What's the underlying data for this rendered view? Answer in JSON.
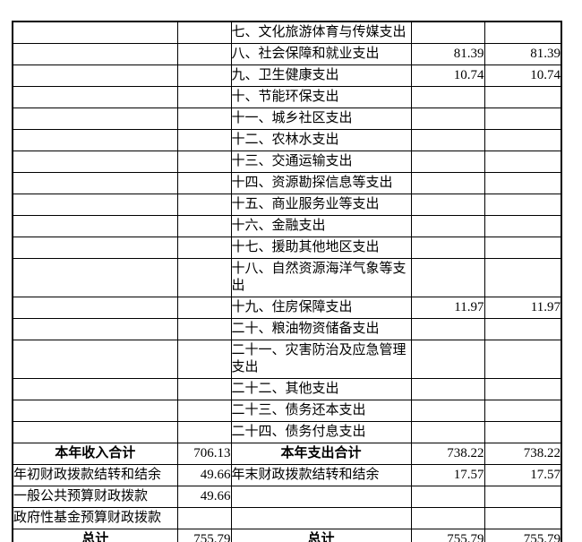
{
  "table": {
    "unit_note": "",
    "expense_rows": [
      {
        "item": "七、文化旅游体育与传媒支出",
        "value1": "",
        "value2": ""
      },
      {
        "item": "八、社会保障和就业支出",
        "value1": "81.39",
        "value2": "81.39"
      },
      {
        "item": "九、卫生健康支出",
        "value1": "10.74",
        "value2": "10.74"
      },
      {
        "item": "十、节能环保支出",
        "value1": "",
        "value2": ""
      },
      {
        "item": "十一、城乡社区支出",
        "value1": "",
        "value2": ""
      },
      {
        "item": "十二、农林水支出",
        "value1": "",
        "value2": ""
      },
      {
        "item": "十三、交通运输支出",
        "value1": "",
        "value2": ""
      },
      {
        "item": "十四、资源勘探信息等支出",
        "value1": "",
        "value2": ""
      },
      {
        "item": "十五、商业服务业等支出",
        "value1": "",
        "value2": ""
      },
      {
        "item": "十六、金融支出",
        "value1": "",
        "value2": ""
      },
      {
        "item": "十七、援助其他地区支出",
        "value1": "",
        "value2": ""
      },
      {
        "item": "十八、自然资源海洋气象等支出",
        "value1": "",
        "value2": ""
      },
      {
        "item": "十九、住房保障支出",
        "value1": "11.97",
        "value2": "11.97"
      },
      {
        "item": "二十、粮油物资储备支出",
        "value1": "",
        "value2": ""
      },
      {
        "item": "二十一、灾害防治及应急管理支出",
        "value1": "",
        "value2": ""
      },
      {
        "item": "二十二、其他支出",
        "value1": "",
        "value2": ""
      },
      {
        "item": "二十三、债务还本支出",
        "value1": "",
        "value2": ""
      },
      {
        "item": "二十四、债务付息支出",
        "value1": "",
        "value2": ""
      }
    ],
    "summary_rows": [
      {
        "income_label": "本年收入合计",
        "income_value": "706.13",
        "expense_label": "本年支出合计",
        "value1": "738.22",
        "value2": "738.22",
        "emphasis": true
      },
      {
        "income_label": "年初财政拨款结转和结余",
        "income_value": "49.66",
        "expense_label": "年末财政拨款结转和结余",
        "value1": "17.57",
        "value2": "17.57",
        "emphasis": false
      },
      {
        "income_label": "一般公共预算财政拨款",
        "income_value": "49.66",
        "expense_label": "",
        "value1": "",
        "value2": "",
        "emphasis": false
      },
      {
        "income_label": "政府性基金预算财政拨款",
        "income_value": "",
        "expense_label": "",
        "value1": "",
        "value2": "",
        "emphasis": false
      },
      {
        "income_label": "总计",
        "income_value": "755.79",
        "expense_label": "总计",
        "value1": "755.79",
        "value2": "755.79",
        "emphasis": true
      }
    ]
  }
}
